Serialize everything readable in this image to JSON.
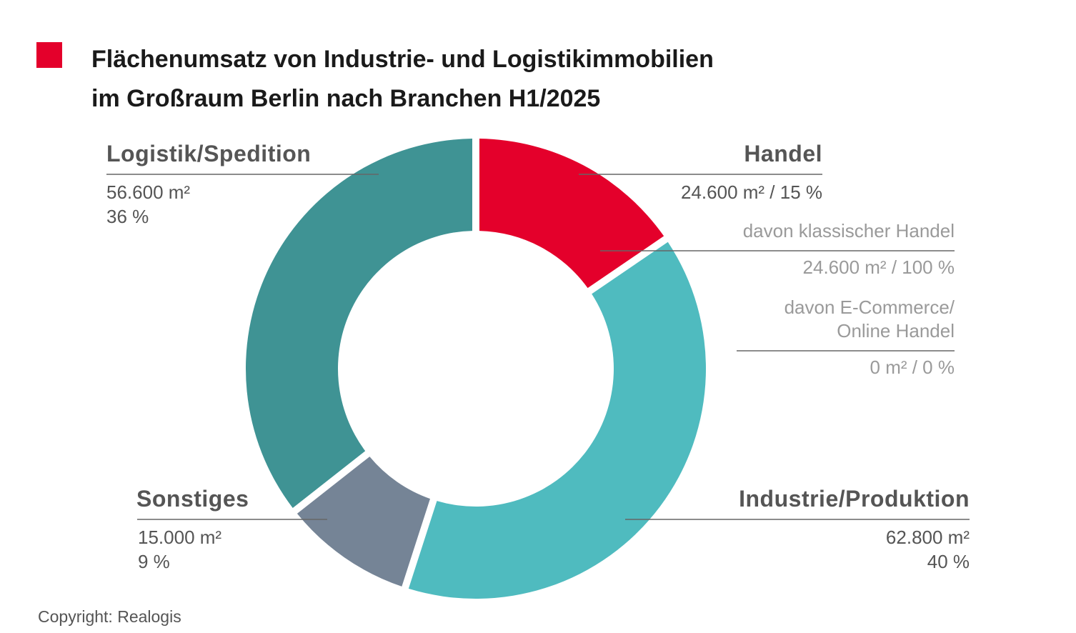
{
  "title": {
    "line1": "Flächenumsatz von Industrie- und Logistikimmobilien",
    "line2": "im Großraum Berlin nach Branchen H1/2025"
  },
  "colors": {
    "accent": "#e4002b",
    "handel": "#e4002b",
    "industrie": "#4fbbbf",
    "sonstiges": "#758496",
    "logistik": "#3f9394",
    "leader": "#666666"
  },
  "chart_data": {
    "type": "pie",
    "variant": "donut",
    "unit": "m²",
    "slices": [
      {
        "name": "Handel",
        "value": 24600,
        "percent": 15,
        "value_label": "24.600 m² / 15 %",
        "color": "#e4002b"
      },
      {
        "name": "Industrie/Produktion",
        "value": 62800,
        "percent": 40,
        "value_label": "62.800 m²",
        "percent_label": "40 %",
        "color": "#4fbbbf"
      },
      {
        "name": "Sonstiges",
        "value": 15000,
        "percent": 9,
        "value_label": "15.000 m²",
        "percent_label": "9 %",
        "color": "#758496"
      },
      {
        "name": "Logistik/Spedition",
        "value": 56600,
        "percent": 36,
        "value_label": "56.600 m²",
        "percent_label": "36 %",
        "color": "#3f9394"
      }
    ],
    "handel_breakdown": [
      {
        "label": "davon klassischer Handel",
        "value": 24600,
        "percent": 100,
        "value_label": "24.600 m² / 100 %"
      },
      {
        "label_line1": "davon E-Commerce/",
        "label_line2": "Online Handel",
        "value": 0,
        "percent": 0,
        "value_label": "0 m² / 0 %"
      }
    ]
  },
  "copyright": "Copyright: Realogis"
}
